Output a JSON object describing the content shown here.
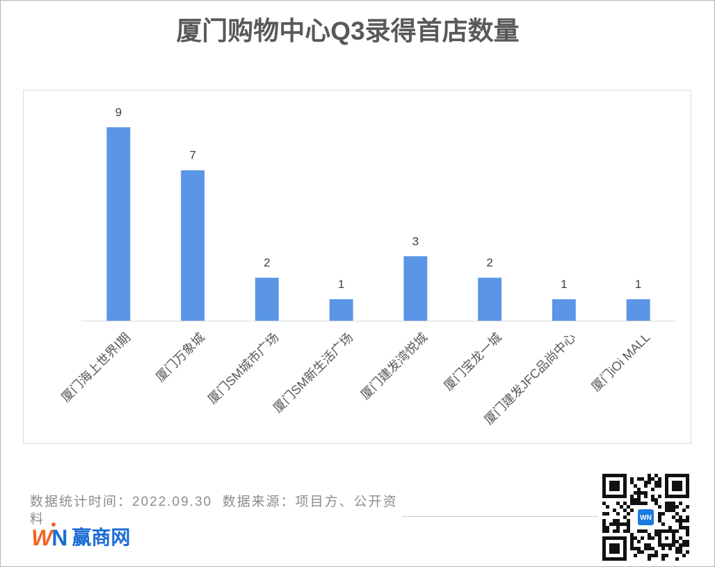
{
  "chart_data": {
    "type": "bar",
    "title": "厦门购物中心Q3录得首店数量",
    "categories": [
      "厦门海上世界Ⅰ期",
      "厦门万象城",
      "厦门SM城市广场",
      "厦门SM新生活广场",
      "厦门建发湾悦城",
      "厦门宝龙一城",
      "厦门建发JFC品尚中心",
      "厦门iOi MALL"
    ],
    "values": [
      9,
      7,
      2,
      1,
      3,
      2,
      1,
      1
    ],
    "ylim": [
      0,
      10
    ],
    "grid": false,
    "legend": false,
    "data_labels": true,
    "y_axis_visible": false,
    "bar_color": "#5b95e6"
  },
  "footer": {
    "source_note": "数据统计时间：2022.09.30  数据来源：项目方、公开资料"
  },
  "logo": {
    "mark_left": "W",
    "mark_right": "N",
    "name": "赢商网"
  },
  "qr_code": {
    "center_logo": "WN"
  },
  "colors": {
    "title": "#595959",
    "footer_text": "#8c8c8c",
    "logo_orange": "#f26522",
    "logo_blue": "#1b6bd4",
    "qr_center": "#1d7be0"
  }
}
